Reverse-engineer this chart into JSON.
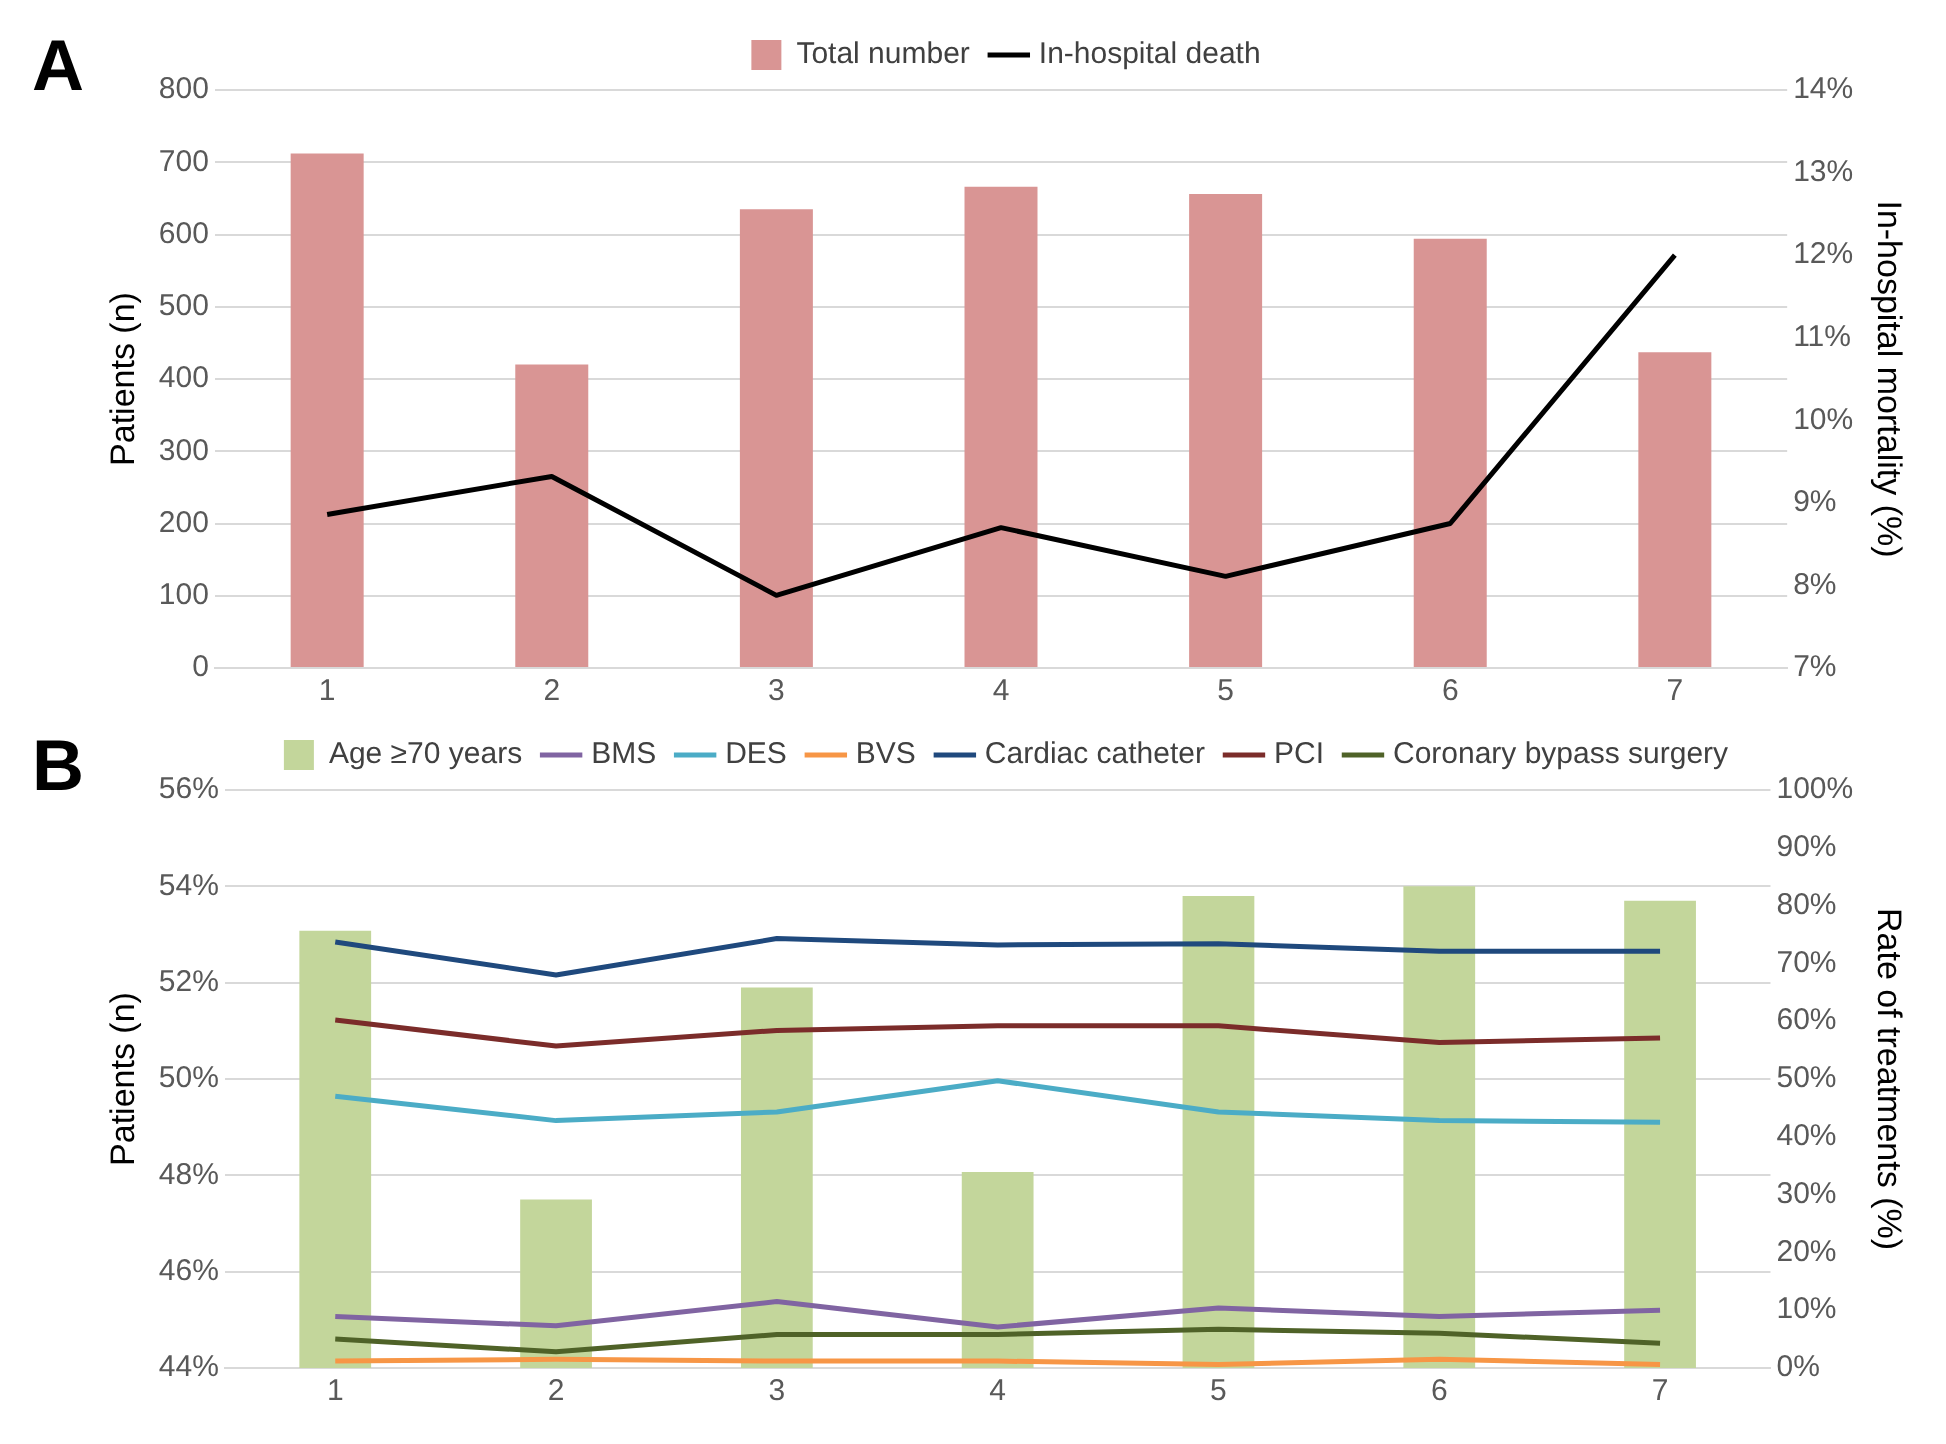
{
  "chart_data": [
    {
      "type": "bar",
      "title": "A",
      "categories": [
        "1",
        "2",
        "3",
        "4",
        "5",
        "6",
        "7"
      ],
      "ylabel": "Patients (n)",
      "y2label": "In-hospital mortality (%)",
      "ylim": [
        0,
        800
      ],
      "yticks": [
        0,
        100,
        200,
        300,
        400,
        500,
        600,
        700,
        800
      ],
      "y2lim": [
        7,
        14
      ],
      "y2ticks": [
        {
          "value": 7,
          "label": "7%"
        },
        {
          "value": 8,
          "label": "8%"
        },
        {
          "value": 9,
          "label": "9%"
        },
        {
          "value": 10,
          "label": "10%"
        },
        {
          "value": 11,
          "label": "11%"
        },
        {
          "value": 12,
          "label": "12%"
        },
        {
          "value": 13,
          "label": "13%"
        },
        {
          "value": 14,
          "label": "14%"
        }
      ],
      "grid": "y",
      "legend": "top",
      "marker": "none",
      "series": [
        {
          "name": "Total number",
          "color": "#d99594",
          "values": [
            712,
            420,
            635,
            666,
            656,
            594,
            437
          ]
        },
        {
          "name": "In-hospital death",
          "type": "line",
          "axis": "y2",
          "color": "#000000",
          "values": [
            8.86,
            9.32,
            7.88,
            8.7,
            8.11,
            8.75,
            12.0
          ]
        }
      ]
    },
    {
      "type": "bar",
      "title": "B",
      "categories": [
        "1",
        "2",
        "3",
        "4",
        "5",
        "6",
        "7"
      ],
      "ylabel": "Patients (n)",
      "y2label": "Rate of treatments (%)",
      "ylim": [
        44,
        56
      ],
      "yticks": [
        {
          "value": 44,
          "label": "44%"
        },
        {
          "value": 46,
          "label": "46%"
        },
        {
          "value": 48,
          "label": "48%"
        },
        {
          "value": 50,
          "label": "50%"
        },
        {
          "value": 52,
          "label": "52%"
        },
        {
          "value": 54,
          "label": "54%"
        },
        {
          "value": 56,
          "label": "56%"
        }
      ],
      "y2lim": [
        0,
        100
      ],
      "y2ticks": [
        {
          "value": 0,
          "label": "0%"
        },
        {
          "value": 10,
          "label": "10%"
        },
        {
          "value": 20,
          "label": "20%"
        },
        {
          "value": 30,
          "label": "30%"
        },
        {
          "value": 40,
          "label": "40%"
        },
        {
          "value": 50,
          "label": "50%"
        },
        {
          "value": 60,
          "label": "60%"
        },
        {
          "value": 70,
          "label": "70%"
        },
        {
          "value": 80,
          "label": "80%"
        },
        {
          "value": 90,
          "label": "90%"
        },
        {
          "value": 100,
          "label": "100%"
        }
      ],
      "grid": "y",
      "legend": "top",
      "marker": "none",
      "series": [
        {
          "name": "Age ≥70 years",
          "color": "#c3d69b",
          "values": [
            53.08,
            47.5,
            51.9,
            48.07,
            53.8,
            54.0,
            53.7
          ]
        },
        {
          "name": "BMS",
          "type": "line",
          "axis": "y2",
          "color": "#8064a2",
          "values": [
            8.9,
            7.3,
            11.5,
            7.1,
            10.4,
            8.9,
            10.0
          ]
        },
        {
          "name": "DES",
          "type": "line",
          "axis": "y2",
          "color": "#4bacc6",
          "values": [
            47.0,
            42.8,
            44.3,
            49.7,
            44.3,
            42.8,
            42.5
          ]
        },
        {
          "name": "BVS",
          "type": "line",
          "axis": "y2",
          "color": "#f79646",
          "values": [
            1.2,
            1.5,
            1.2,
            1.2,
            0.6,
            1.5,
            0.6
          ]
        },
        {
          "name": "Cardiac catheter",
          "type": "line",
          "axis": "y2",
          "color": "#1f497d",
          "values": [
            73.7,
            68.0,
            74.3,
            73.2,
            73.4,
            72.1,
            72.1
          ]
        },
        {
          "name": "PCI",
          "type": "line",
          "axis": "y2",
          "color": "#7b2c2a",
          "values": [
            60.2,
            55.7,
            58.4,
            59.2,
            59.2,
            56.3,
            57.1
          ]
        },
        {
          "name": "Coronary bypass surgery",
          "type": "line",
          "axis": "y2",
          "color": "#4f6228",
          "values": [
            5.0,
            2.8,
            5.8,
            5.8,
            6.7,
            6.0,
            4.3
          ]
        }
      ]
    }
  ]
}
